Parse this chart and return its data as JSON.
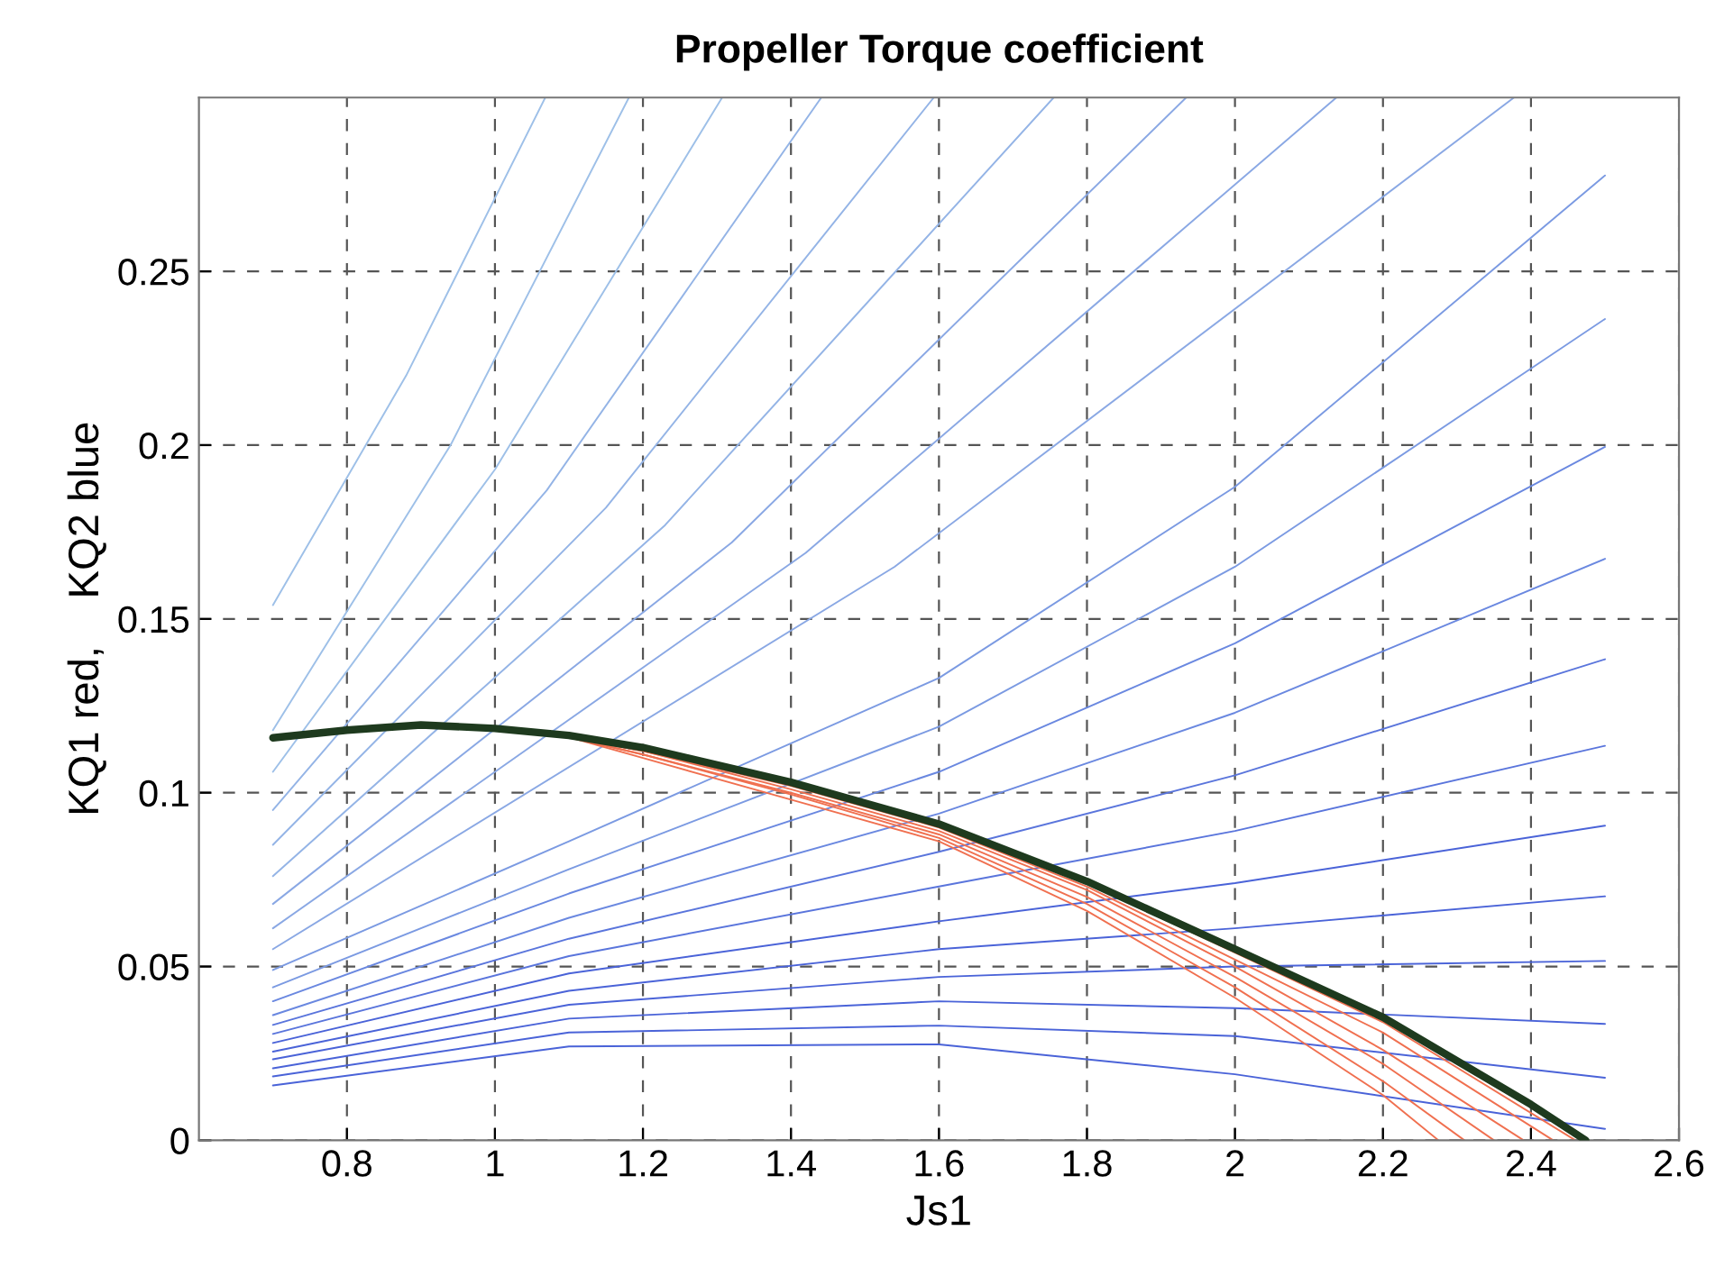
{
  "chart_data": {
    "type": "line",
    "title": "Propeller Torque coefficient",
    "xlabel": "Js1",
    "ylabel": "KQ1 red,    KQ2 blue",
    "xlim": [
      0.6,
      2.6
    ],
    "xticks": [
      0.8,
      1,
      1.2,
      1.4,
      1.6,
      1.8,
      2,
      2.2,
      2.4,
      2.6
    ],
    "ylim": [
      0,
      0.3
    ],
    "yticks": [
      0,
      0.05,
      0.1,
      0.15,
      0.2,
      0.25
    ],
    "grid": true,
    "line_style": "solid",
    "series": [
      {
        "color": "#4a63d8",
        "x": [
          0.7,
          1.1,
          1.6,
          2.0,
          2.5
        ],
        "values": [
          0.0158,
          0.027,
          0.0276,
          0.019,
          0.0033
        ]
      },
      {
        "color": "#4a63d8",
        "x": [
          0.7,
          1.1,
          1.6,
          2.0,
          2.5
        ],
        "values": [
          0.0184,
          0.031,
          0.033,
          0.03,
          0.018
        ]
      },
      {
        "color": "#4a63d8",
        "x": [
          0.7,
          1.1,
          1.6,
          2.0,
          2.5
        ],
        "values": [
          0.0207,
          0.035,
          0.04,
          0.038,
          0.0335
        ]
      },
      {
        "color": "#4a63d8",
        "x": [
          0.7,
          1.1,
          1.6,
          2.0,
          2.5
        ],
        "values": [
          0.0233,
          0.039,
          0.047,
          0.05,
          0.0516
        ]
      },
      {
        "color": "#4a63d8",
        "x": [
          0.7,
          1.1,
          1.6,
          2.0,
          2.5
        ],
        "values": [
          0.0255,
          0.043,
          0.055,
          0.061,
          0.0702
        ]
      },
      {
        "color": "#4a63d8",
        "x": [
          0.7,
          1.1,
          1.6,
          2.0,
          2.5
        ],
        "values": [
          0.028,
          0.048,
          0.063,
          0.074,
          0.0905
        ]
      },
      {
        "color": "#5a75dc",
        "x": [
          0.7,
          1.1,
          1.6,
          2.0,
          2.5
        ],
        "values": [
          0.0306,
          0.053,
          0.073,
          0.089,
          0.1135
        ]
      },
      {
        "color": "#5a75dc",
        "x": [
          0.7,
          1.1,
          1.6,
          2.0,
          2.5
        ],
        "values": [
          0.0332,
          0.058,
          0.083,
          0.105,
          0.1384
        ]
      },
      {
        "color": "#6a88e0",
        "x": [
          0.7,
          1.1,
          1.6,
          2.0,
          2.5
        ],
        "values": [
          0.036,
          0.064,
          0.094,
          0.123,
          0.1673
        ]
      },
      {
        "color": "#6a88e0",
        "x": [
          0.7,
          1.1,
          1.6,
          2.0,
          2.5
        ],
        "values": [
          0.04,
          0.071,
          0.106,
          0.143,
          0.1995
        ]
      },
      {
        "color": "#7b9ae2",
        "x": [
          0.7,
          1.1,
          1.6,
          2.0,
          2.5
        ],
        "values": [
          0.044,
          0.078,
          0.119,
          0.165,
          0.2363
        ]
      },
      {
        "color": "#7b9ae2",
        "x": [
          0.7,
          1.1,
          1.6,
          2.0,
          2.5
        ],
        "values": [
          0.049,
          0.086,
          0.133,
          0.188,
          0.2776
        ]
      },
      {
        "color": "#8aa8e4",
        "x": [
          0.7,
          1.54,
          2.377
        ],
        "values": [
          0.055,
          0.165,
          0.3
        ]
      },
      {
        "color": "#8aa8e4",
        "x": [
          0.7,
          1.42,
          2.137
        ],
        "values": [
          0.061,
          0.169,
          0.3
        ]
      },
      {
        "color": "#8aa8e4",
        "x": [
          0.7,
          1.32,
          1.934
        ],
        "values": [
          0.068,
          0.172,
          0.3
        ]
      },
      {
        "color": "#94b4e6",
        "x": [
          0.7,
          1.23,
          1.755
        ],
        "values": [
          0.076,
          0.177,
          0.3
        ]
      },
      {
        "color": "#94b4e6",
        "x": [
          0.7,
          1.15,
          1.593
        ],
        "values": [
          0.085,
          0.182,
          0.3
        ]
      },
      {
        "color": "#94b4e6",
        "x": [
          0.7,
          1.07,
          1.441
        ],
        "values": [
          0.095,
          0.187,
          0.3
        ]
      },
      {
        "color": "#9ec0e8",
        "x": [
          0.7,
          1.0,
          1.307
        ],
        "values": [
          0.106,
          0.193,
          0.3
        ]
      },
      {
        "color": "#9ec0e8",
        "x": [
          0.7,
          0.94,
          1.181
        ],
        "values": [
          0.118,
          0.2,
          0.3
        ]
      },
      {
        "color": "#9ec0e8",
        "x": [
          0.7,
          0.88,
          1.068
        ],
        "values": [
          0.154,
          0.22,
          0.3
        ]
      },
      {
        "color": "#f07050",
        "x": [
          1.1,
          1.2,
          1.4,
          1.6,
          1.8,
          2.0,
          2.2,
          2.275
        ],
        "values": [
          0.116,
          0.11,
          0.098,
          0.086,
          0.066,
          0.041,
          0.013,
          0
        ]
      },
      {
        "color": "#f07050",
        "x": [
          1.1,
          1.2,
          1.4,
          1.6,
          1.8,
          2.0,
          2.2,
          2.31
        ],
        "values": [
          0.116,
          0.111,
          0.0995,
          0.087,
          0.068,
          0.044,
          0.017,
          0
        ]
      },
      {
        "color": "#f07050",
        "x": [
          1.1,
          1.2,
          1.4,
          1.6,
          1.8,
          2.0,
          2.2,
          2.35
        ],
        "values": [
          0.116,
          0.111,
          0.1,
          0.088,
          0.07,
          0.047,
          0.022,
          0
        ]
      },
      {
        "color": "#f07050",
        "x": [
          1.1,
          1.2,
          1.4,
          1.6,
          1.8,
          2.0,
          2.2,
          2.39
        ],
        "values": [
          0.116,
          0.112,
          0.101,
          0.089,
          0.072,
          0.05,
          0.026,
          0
        ]
      },
      {
        "color": "#f07050",
        "x": [
          1.1,
          1.2,
          1.4,
          1.6,
          1.8,
          2.0,
          2.2,
          2.43
        ],
        "values": [
          0.116,
          0.112,
          0.102,
          0.09,
          0.073,
          0.052,
          0.031,
          0
        ]
      },
      {
        "color": "#f07050",
        "x": [
          1.1,
          1.2,
          1.4,
          1.6,
          1.8,
          2.0,
          2.2,
          2.46
        ],
        "values": [
          0.116,
          0.112,
          0.103,
          0.091,
          0.074,
          0.054,
          0.034,
          0
        ]
      },
      {
        "color": "#1e3a1e",
        "x": [
          0.7,
          0.8,
          0.9,
          1.0,
          1.1,
          1.2,
          1.4,
          1.6,
          1.8,
          2.0,
          2.2,
          2.4,
          2.474
        ],
        "values": [
          0.1158,
          0.118,
          0.1195,
          0.1185,
          0.1165,
          0.113,
          0.103,
          0.091,
          0.0745,
          0.055,
          0.0354,
          0.0103,
          0
        ]
      }
    ]
  }
}
